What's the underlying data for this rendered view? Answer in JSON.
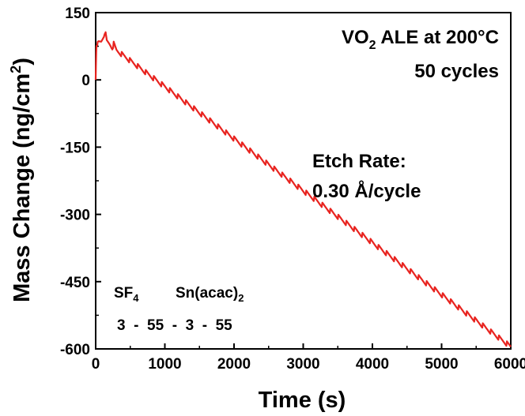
{
  "chart_data": {
    "type": "line",
    "title": "",
    "xlabel": "Time (s)",
    "ylabel_main": "Mass Change (ng/cm",
    "ylabel_sup": "2",
    "ylabel_end": ")",
    "xlim": [
      0,
      6000
    ],
    "ylim": [
      -600,
      150
    ],
    "x_ticks": [
      0,
      1000,
      2000,
      3000,
      4000,
      5000,
      6000
    ],
    "x_tick_labels": [
      "0",
      "1000",
      "2000",
      "3000",
      "4000",
      "5000",
      "6000"
    ],
    "y_ticks": [
      150,
      0,
      -150,
      -300,
      -450,
      -600
    ],
    "y_tick_labels": [
      "150",
      "0",
      "-150",
      "-300",
      "-450",
      "-600"
    ],
    "grid": false,
    "series": [
      {
        "color": "#e8231f",
        "cycles": 50,
        "cycle_period_s": 116,
        "x": [
          0,
          10,
          40,
          80,
          120,
          135,
          160,
          200,
          240,
          260,
          300,
          6000
        ],
        "y": [
          0,
          75,
          82,
          85,
          100,
          110,
          85,
          80,
          72,
          80,
          66,
          -595
        ]
      }
    ],
    "annotations": {
      "condition_main": "VO",
      "condition_sub": "2",
      "condition_rest": " ALE at 200°C",
      "cycles_text": "50 cycles",
      "etch_rate_label": "Etch Rate:",
      "etch_rate_value": "0.30 Å/cycle",
      "reactant1_main": "SF",
      "reactant1_sub": "4",
      "reactant2_main": "Sn(acac)",
      "reactant2_sub": "2",
      "timing_sequence": "3  -  55  -  3  -  55"
    }
  }
}
